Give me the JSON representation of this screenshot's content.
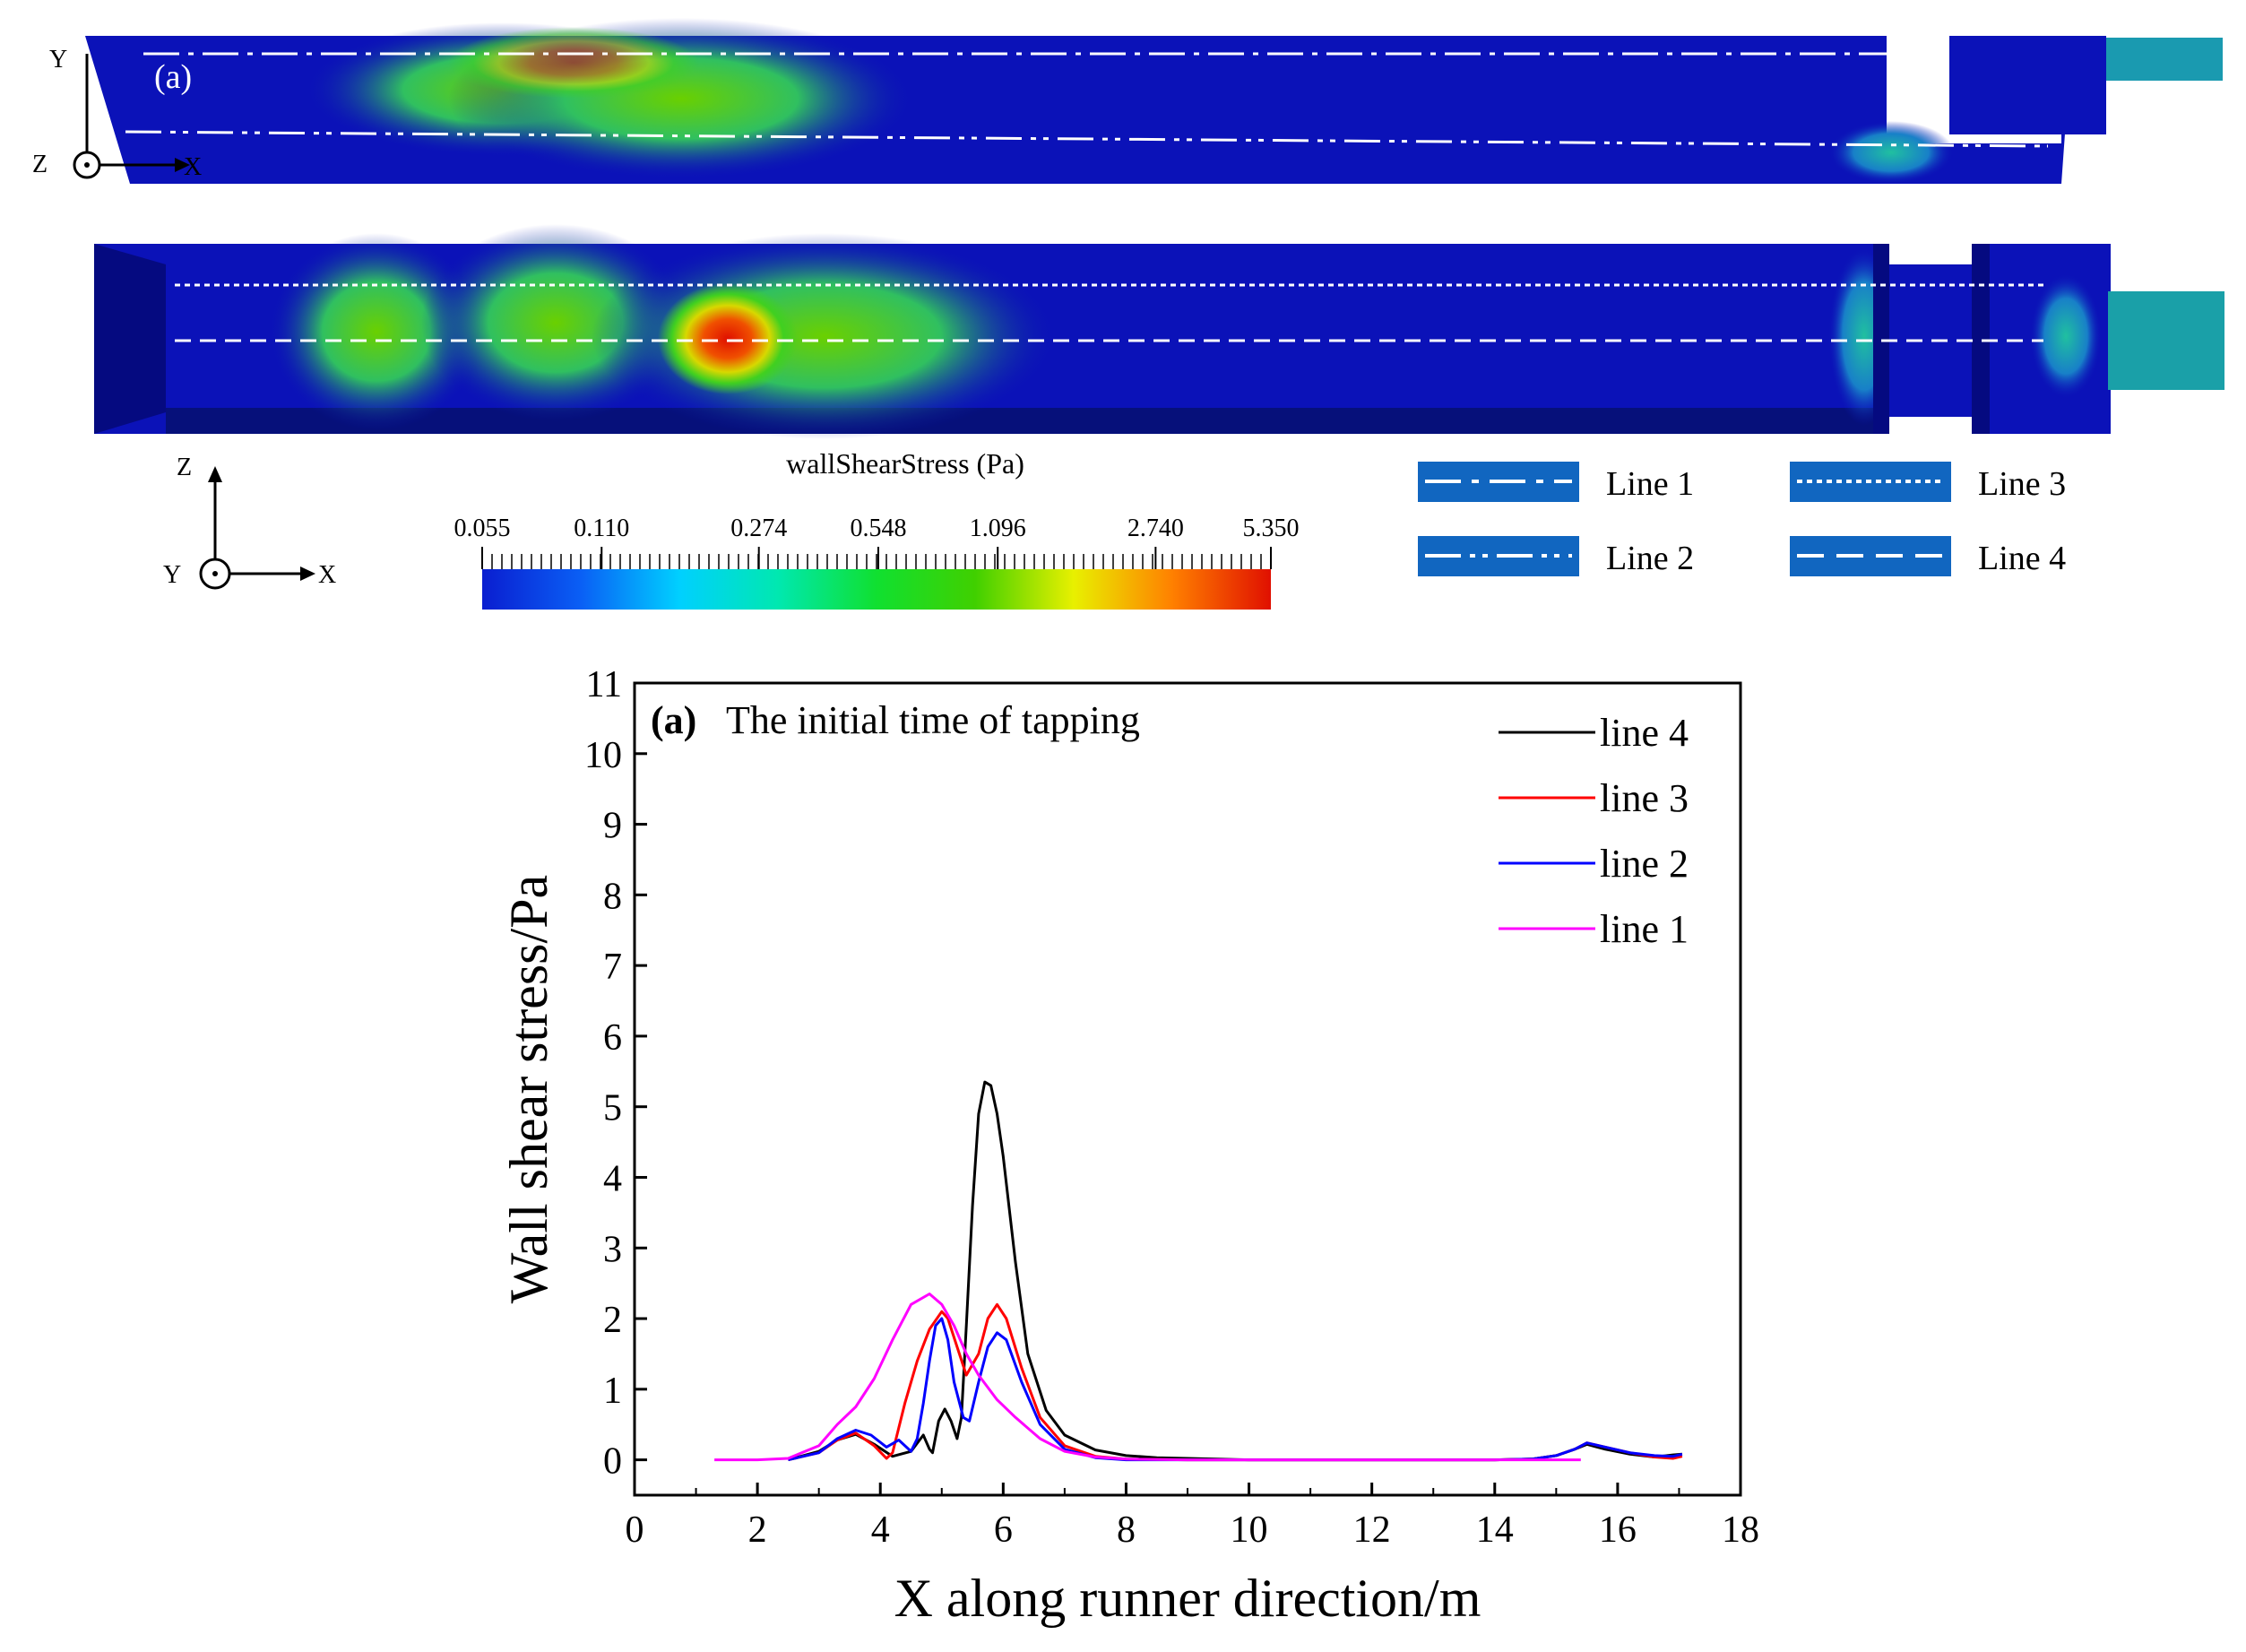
{
  "panel_label": "(a)",
  "contour": {
    "colorbar_title": "wallShearStress  (Pa)",
    "colorbar_ticks": [
      "0.055",
      "0.110",
      "0.274",
      "0.548",
      "1.096",
      "2.740",
      "5.350"
    ],
    "colorbar_tick_values": [
      0.055,
      0.11,
      0.274,
      0.548,
      1.096,
      2.74,
      5.35
    ],
    "colorbar_colors": [
      "#0a1ed0",
      "#0a5ff5",
      "#00d0ff",
      "#00e8b0",
      "#10e030",
      "#40d000",
      "#e8f000",
      "#ff8000",
      "#e01000"
    ],
    "background_color": "#0b12b8",
    "axes_top": {
      "vertical": "Y",
      "horizontal": "X",
      "out_of_plane": "Z"
    },
    "axes_bottom": {
      "vertical": "Z",
      "horizontal": "X",
      "out_of_plane": "Y"
    },
    "line_legend": [
      "Line 1",
      "Line 2",
      "Line 3",
      "Line 4"
    ]
  },
  "chart_data": {
    "type": "line",
    "title_bold": "(a)",
    "title": "The initial time of tapping",
    "xlabel": "X along runner direction/m",
    "ylabel": "Wall shear stress/Pa",
    "xlim": [
      0,
      18
    ],
    "ylim": [
      -0.5,
      11
    ],
    "xticks": [
      "0",
      "2",
      "4",
      "6",
      "8",
      "10",
      "12",
      "14",
      "16",
      "18"
    ],
    "yticks": [
      "0",
      "1",
      "2",
      "3",
      "4",
      "5",
      "6",
      "7",
      "8",
      "9",
      "10",
      "11"
    ],
    "legend_position": "top-right",
    "series": [
      {
        "name": "line 4",
        "color": "#000000",
        "x": [
          2.5,
          3.0,
          3.3,
          3.6,
          3.9,
          4.2,
          4.5,
          4.7,
          4.8,
          4.85,
          4.95,
          5.05,
          5.15,
          5.25,
          5.32,
          5.4,
          5.5,
          5.6,
          5.7,
          5.8,
          5.9,
          6.0,
          6.2,
          6.4,
          6.7,
          7.0,
          7.5,
          8.0,
          8.5,
          9.0,
          10,
          12,
          14,
          14.6,
          15.0,
          15.3,
          15.5,
          15.8,
          16.2,
          16.6,
          16.9,
          17.05
        ],
        "values": [
          0.0,
          0.12,
          0.28,
          0.36,
          0.22,
          0.05,
          0.12,
          0.35,
          0.15,
          0.1,
          0.55,
          0.72,
          0.55,
          0.3,
          0.6,
          1.9,
          3.6,
          4.9,
          5.35,
          5.3,
          4.9,
          4.3,
          2.8,
          1.5,
          0.7,
          0.35,
          0.14,
          0.06,
          0.03,
          0.02,
          0.0,
          0.0,
          0.0,
          0.01,
          0.06,
          0.15,
          0.22,
          0.15,
          0.08,
          0.04,
          0.07,
          0.08
        ]
      },
      {
        "name": "line 3",
        "color": "#ff0000",
        "x": [
          2.5,
          3.0,
          3.3,
          3.6,
          3.9,
          4.1,
          4.2,
          4.4,
          4.6,
          4.8,
          5.0,
          5.1,
          5.25,
          5.4,
          5.6,
          5.75,
          5.9,
          6.05,
          6.3,
          6.6,
          7.0,
          7.5,
          8.0,
          9.0,
          10,
          12,
          14,
          14.6,
          15.0,
          15.3,
          15.5,
          15.8,
          16.2,
          16.6,
          16.9,
          17.05
        ],
        "values": [
          0.0,
          0.1,
          0.28,
          0.38,
          0.2,
          0.02,
          0.1,
          0.8,
          1.4,
          1.85,
          2.1,
          2.0,
          1.6,
          1.2,
          1.5,
          2.0,
          2.2,
          2.0,
          1.3,
          0.6,
          0.2,
          0.05,
          0.01,
          0.0,
          0.0,
          0.0,
          0.0,
          0.01,
          0.06,
          0.15,
          0.24,
          0.18,
          0.1,
          0.04,
          0.02,
          0.05
        ]
      },
      {
        "name": "line 2",
        "color": "#0000ff",
        "x": [
          2.5,
          3.0,
          3.3,
          3.6,
          3.85,
          4.1,
          4.3,
          4.5,
          4.6,
          4.7,
          4.8,
          4.9,
          5.0,
          5.1,
          5.2,
          5.35,
          5.45,
          5.6,
          5.75,
          5.9,
          6.05,
          6.3,
          6.6,
          7.0,
          7.5,
          8.0,
          9.0,
          10,
          12,
          14,
          14.6,
          15.0,
          15.3,
          15.5,
          15.8,
          16.2,
          16.6,
          16.9,
          17.05
        ],
        "values": [
          0.0,
          0.1,
          0.3,
          0.42,
          0.35,
          0.18,
          0.28,
          0.12,
          0.3,
          0.8,
          1.4,
          1.9,
          2.0,
          1.7,
          1.1,
          0.6,
          0.55,
          1.1,
          1.6,
          1.8,
          1.7,
          1.1,
          0.5,
          0.15,
          0.03,
          0.0,
          0.0,
          0.0,
          0.0,
          0.0,
          0.01,
          0.06,
          0.15,
          0.24,
          0.18,
          0.1,
          0.06,
          0.05,
          0.08
        ]
      },
      {
        "name": "line 1",
        "color": "#ff00ff",
        "x": [
          1.3,
          2.0,
          2.5,
          3.0,
          3.3,
          3.6,
          3.9,
          4.2,
          4.5,
          4.8,
          5.0,
          5.2,
          5.4,
          5.6,
          5.9,
          6.2,
          6.6,
          7.0,
          7.5,
          8.0,
          9.0,
          10,
          12,
          14,
          15.0,
          15.4
        ],
        "values": [
          0.0,
          0.0,
          0.02,
          0.2,
          0.5,
          0.75,
          1.15,
          1.7,
          2.2,
          2.35,
          2.2,
          1.9,
          1.5,
          1.2,
          0.85,
          0.6,
          0.3,
          0.12,
          0.04,
          0.01,
          0.0,
          0.0,
          0.0,
          0.0,
          0.0,
          0.0
        ]
      }
    ]
  }
}
